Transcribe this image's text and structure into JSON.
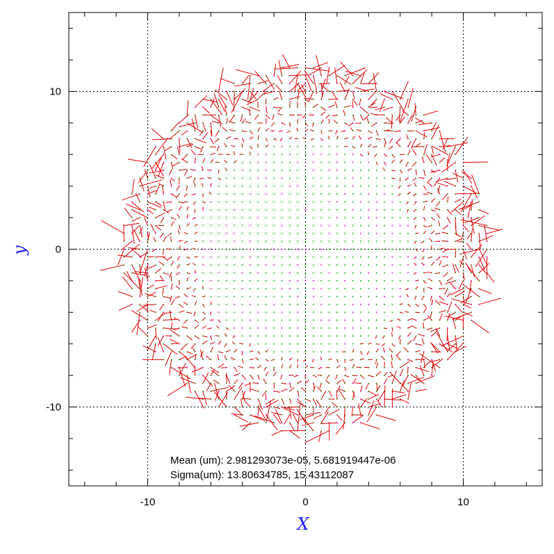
{
  "chart_data": {
    "type": "quiver",
    "title": "",
    "xlabel": "X",
    "ylabel": "y",
    "xlim": [
      -15,
      15
    ],
    "ylim": [
      -15,
      15
    ],
    "xticks": [
      -10,
      0,
      10
    ],
    "yticks": [
      -10,
      0,
      10
    ],
    "grid": true,
    "grid_values": [
      -10,
      0,
      10
    ],
    "field": {
      "shape": "circular-grid",
      "radius": 11.5,
      "spacing": 0.5,
      "marker_color": "#00a000",
      "marker_alt_color": "#c000c0",
      "vector_color": "#dd0000",
      "vector_scale": 0.9,
      "large_vectors_near_edge": true
    },
    "annotations": [
      "Mean (um): 2.981293073e-05, 5.681919447e-06",
      "Sigma(um): 13.80634785, 15.43112087"
    ]
  },
  "colors": {
    "axis_title": "#1a1aff",
    "frame": "#000000",
    "grid": "#000000"
  }
}
